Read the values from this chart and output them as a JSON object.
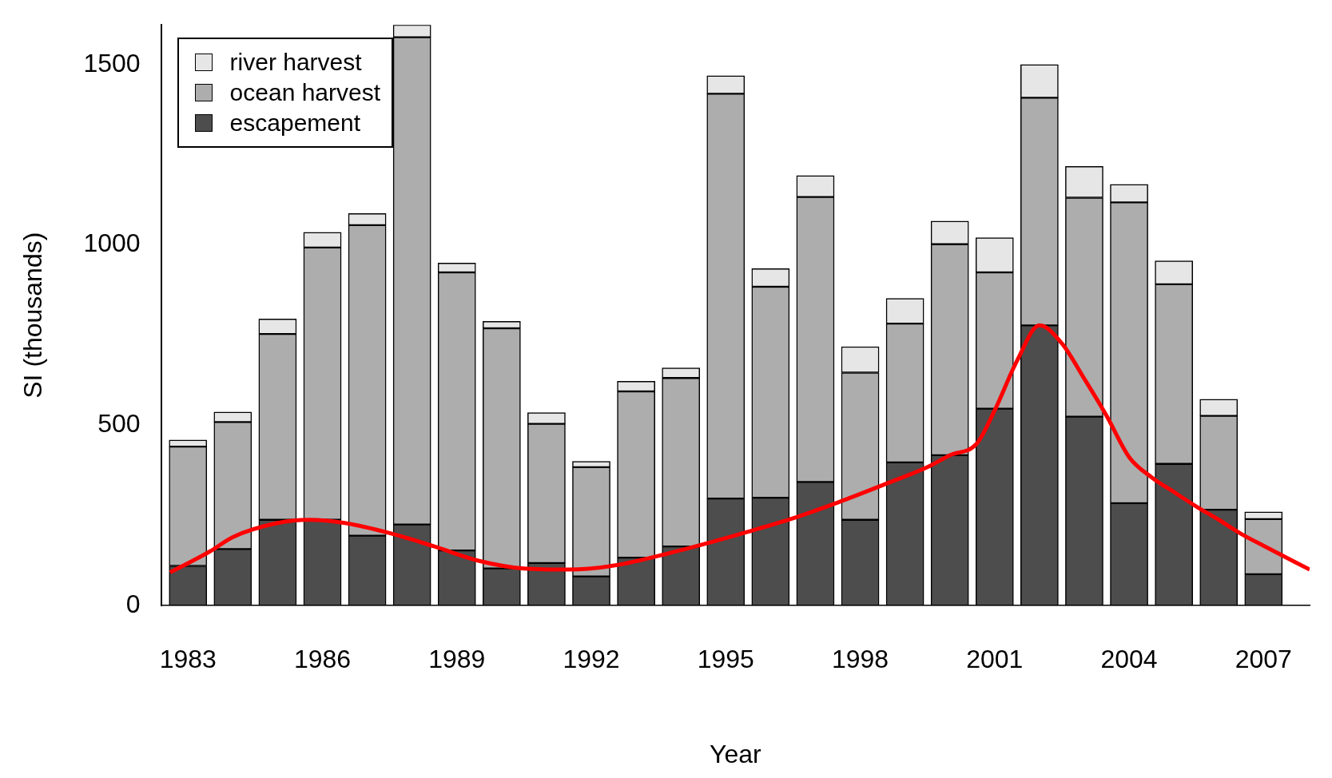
{
  "chart_data": {
    "type": "bar",
    "stacked": true,
    "xlabel": "Year",
    "ylabel": "SI (thousands)",
    "x": [
      1983,
      1984,
      1985,
      1986,
      1987,
      1988,
      1989,
      1990,
      1991,
      1992,
      1993,
      1994,
      1995,
      1996,
      1997,
      1998,
      1999,
      2000,
      2001,
      2002,
      2003,
      2004,
      2005,
      2006,
      2007
    ],
    "xlim": [
      1982.4,
      2008.03
    ],
    "xticks": [
      1983,
      1986,
      1989,
      1992,
      1995,
      1998,
      2001,
      2004,
      2007
    ],
    "ylim": [
      0,
      1610
    ],
    "yticks": [
      0,
      500,
      1000,
      1500
    ],
    "grid": false,
    "legend": "top left",
    "series": [
      {
        "name": "escapement",
        "color": "#4d4d4d",
        "values": [
          110,
          157,
          238,
          238,
          194,
          225,
          153,
          103,
          118,
          81,
          133,
          164,
          297,
          299,
          343,
          238,
          397,
          417,
          546,
          777,
          524,
          284,
          393,
          266,
          87
        ]
      },
      {
        "name": "ocean harvest",
        "color": "#adadad",
        "values": [
          331,
          352,
          515,
          755,
          861,
          1351,
          771,
          666,
          386,
          303,
          461,
          467,
          1122,
          585,
          790,
          408,
          385,
          585,
          378,
          631,
          607,
          834,
          498,
          260,
          153
        ]
      },
      {
        "name": "river harvest",
        "color": "#e6e6e6",
        "values": [
          18,
          28,
          42,
          42,
          32,
          34,
          26,
          19,
          31,
          16,
          28,
          28,
          50,
          50,
          59,
          72,
          70,
          64,
          96,
          92,
          87,
          50,
          65,
          46,
          20
        ]
      },
      {
        "type": "line",
        "color": "#ff0000",
        "x": [
          1982.6,
          1983.5,
          1984,
          1985,
          1985.7,
          1986.5,
          1987.5,
          1988.5,
          1989.5,
          1990.5,
          1991.5,
          1992.5,
          1993.5,
          1994.5,
          1995.5,
          1996.5,
          1997.5,
          1998.5,
          1999.5,
          2000,
          2000.6,
          2001,
          2001.5,
          2002,
          2002.5,
          2003,
          2003.5,
          2004,
          2004.5,
          2005,
          2005.5,
          2006,
          2006.5,
          2007,
          2008.03
        ],
        "values": [
          92,
          151,
          190,
          229,
          238,
          229,
          201,
          164,
          124,
          103,
          100,
          111,
          138,
          170,
          205,
          242,
          286,
          334,
          384,
          417,
          449,
          541,
          679,
          777,
          727,
          629,
          526,
          412,
          356,
          315,
          275,
          238,
          199,
          166,
          100
        ]
      }
    ]
  }
}
